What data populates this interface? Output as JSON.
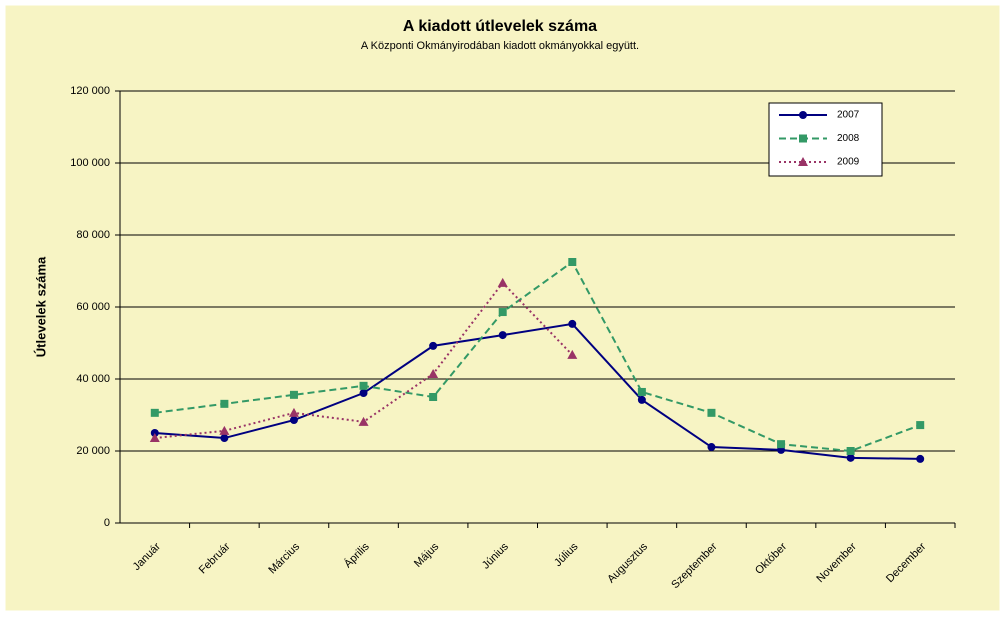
{
  "chart_data": {
    "type": "line",
    "title": "A  kiadott útlevelek száma",
    "subtitle": "A Központi Okmányirodában kiadott okmányokkal együtt.",
    "y_label": "Útlevelek száma",
    "categories": [
      "Január",
      "Február",
      "Március",
      "Április",
      "Május",
      "Június",
      "Július",
      "Augusztus",
      "Szeptember",
      "Október",
      "November",
      "December"
    ],
    "series": [
      {
        "name": "2007",
        "color": "#000080",
        "dash": "solid",
        "marker": "circle",
        "values": [
          25000,
          23600,
          28600,
          36100,
          49200,
          52200,
          55300,
          34200,
          21100,
          20300,
          18100,
          17800
        ]
      },
      {
        "name": "2008",
        "color": "#339966",
        "dash": "dashed",
        "marker": "square",
        "values": [
          30600,
          33100,
          35600,
          38100,
          35000,
          58600,
          72500,
          36400,
          30600,
          21900,
          20000,
          27200
        ]
      },
      {
        "name": "2009",
        "color": "#993366",
        "dash": "dotted",
        "marker": "triangle",
        "values": [
          23600,
          25600,
          30600,
          28100,
          41400,
          66700,
          46700,
          null,
          null,
          null,
          null,
          null
        ]
      }
    ],
    "ylim": [
      0,
      120000
    ],
    "yticks": [
      0,
      {
        "value": 20000,
        "label": "20 000"
      },
      {
        "value": 40000,
        "label": "40 000"
      },
      {
        "value": 60000,
        "label": "60 000"
      },
      {
        "value": 80000,
        "label": "80 000"
      },
      {
        "value": 100000,
        "label": "100 000"
      },
      {
        "value": 120000,
        "label": "120 000"
      }
    ],
    "grid": true,
    "legend": "top-right"
  }
}
